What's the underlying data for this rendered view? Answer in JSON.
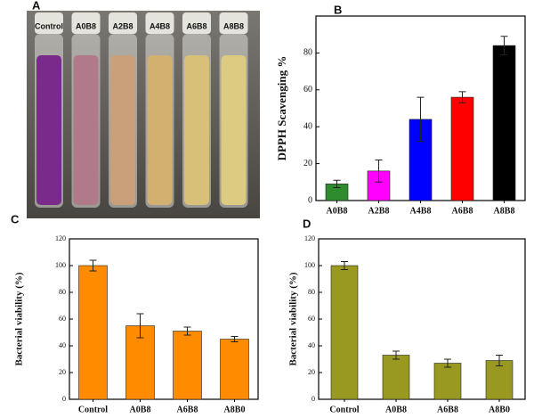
{
  "photo": {
    "panel": "A",
    "labels": [
      "Control",
      "A0B8",
      "A2B8",
      "A4B8",
      "A6B8",
      "A8B8"
    ]
  },
  "chart_data": [
    {
      "type": "bar",
      "panel": "B",
      "y_label": "DPPH Scavenging %",
      "categories": [
        "A0B8",
        "A2B8",
        "A4B8",
        "A6B8",
        "A8B8"
      ],
      "values": [
        9,
        16,
        44,
        56,
        84
      ],
      "errors": [
        2,
        6,
        12,
        3,
        5
      ],
      "colors": [
        "#2e8b2e",
        "#ff00ff",
        "#0000ff",
        "#ff0000",
        "#000000"
      ],
      "ylim": [
        0,
        100
      ],
      "yticks": [
        0,
        20,
        40,
        60,
        80
      ]
    },
    {
      "type": "bar",
      "panel": "C",
      "y_label": "Bacterial viability (%)",
      "categories": [
        "Control",
        "A0B8",
        "A6B8",
        "A8B0"
      ],
      "values": [
        100,
        55,
        51,
        45
      ],
      "errors": [
        4,
        9,
        3,
        2
      ],
      "color": "#ff8c00",
      "ylim": [
        0,
        120
      ],
      "yticks": [
        0,
        20,
        40,
        60,
        80,
        100,
        120
      ]
    },
    {
      "type": "bar",
      "panel": "D",
      "y_label": "Bacterial viability (%)",
      "categories": [
        "Control",
        "A0B8",
        "A6B8",
        "A8B0"
      ],
      "values": [
        100,
        33,
        27,
        29
      ],
      "errors": [
        3,
        3,
        3,
        4
      ],
      "color": "#999922",
      "ylim": [
        0,
        120
      ],
      "yticks": [
        0,
        20,
        40,
        60,
        80,
        100,
        120
      ]
    }
  ]
}
